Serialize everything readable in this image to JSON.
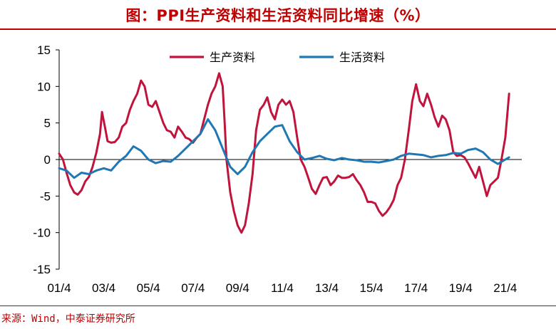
{
  "page": {
    "title": "图：PPI生产资料和生活资料同比增速（%）",
    "source": "来源：Wind，中泰证券研究所"
  },
  "colors": {
    "series1": "#c0143c",
    "series2": "#1f77b4",
    "accent": "#c00000"
  },
  "chart_data": {
    "type": "line",
    "title": "图：PPI生产资料和生活资料同比增速（%）",
    "xlabel": "",
    "ylabel": "",
    "ylim": [
      -15,
      15
    ],
    "yticks": [
      "15",
      "10",
      "5",
      "0",
      "-5",
      "-10",
      "-15"
    ],
    "ytick_values": [
      15,
      10,
      5,
      0,
      -5,
      -10,
      -15
    ],
    "xticks": [
      "01/4",
      "03/4",
      "05/4",
      "07/4",
      "09/4",
      "11/4",
      "13/4",
      "15/4",
      "17/4",
      "19/4",
      "21/4"
    ],
    "xtick_values": [
      2001.25,
      2003.25,
      2005.25,
      2007.25,
      2009.25,
      2011.25,
      2013.25,
      2015.25,
      2017.25,
      2019.25,
      2021.25
    ],
    "xlim": [
      2001.25,
      2021.67
    ],
    "legend_position": "top-center",
    "grid": false,
    "series": [
      {
        "name": "生产资料",
        "color": "#c0143c",
        "points": [
          [
            2001.25,
            0.8
          ],
          [
            2001.42,
            0
          ],
          [
            2001.58,
            -1.8
          ],
          [
            2001.75,
            -3.5
          ],
          [
            2001.92,
            -4.5
          ],
          [
            2002.08,
            -4.8
          ],
          [
            2002.25,
            -4.2
          ],
          [
            2002.42,
            -3
          ],
          [
            2002.58,
            -2.4
          ],
          [
            2002.75,
            -1
          ],
          [
            2002.92,
            1
          ],
          [
            2003.08,
            3.5
          ],
          [
            2003.17,
            6.5
          ],
          [
            2003.33,
            4
          ],
          [
            2003.42,
            2.5
          ],
          [
            2003.58,
            2.3
          ],
          [
            2003.75,
            2.4
          ],
          [
            2003.92,
            3
          ],
          [
            2004.08,
            4.5
          ],
          [
            2004.25,
            5
          ],
          [
            2004.42,
            6.8
          ],
          [
            2004.58,
            8
          ],
          [
            2004.75,
            9
          ],
          [
            2004.92,
            10.8
          ],
          [
            2005.08,
            10
          ],
          [
            2005.25,
            7.5
          ],
          [
            2005.42,
            7.2
          ],
          [
            2005.58,
            8
          ],
          [
            2005.75,
            6.5
          ],
          [
            2005.92,
            5
          ],
          [
            2006.08,
            4
          ],
          [
            2006.25,
            3.8
          ],
          [
            2006.42,
            3
          ],
          [
            2006.58,
            4.5
          ],
          [
            2006.75,
            3.8
          ],
          [
            2006.92,
            3
          ],
          [
            2007.08,
            2.8
          ],
          [
            2007.25,
            2.3
          ],
          [
            2007.42,
            3
          ],
          [
            2007.58,
            3.5
          ],
          [
            2007.75,
            5.5
          ],
          [
            2007.92,
            7.5
          ],
          [
            2008.08,
            9
          ],
          [
            2008.25,
            10
          ],
          [
            2008.42,
            11.8
          ],
          [
            2008.58,
            10
          ],
          [
            2008.67,
            5
          ],
          [
            2008.75,
            0
          ],
          [
            2008.92,
            -4.5
          ],
          [
            2009.08,
            -7
          ],
          [
            2009.25,
            -9
          ],
          [
            2009.42,
            -10
          ],
          [
            2009.58,
            -9
          ],
          [
            2009.75,
            -6
          ],
          [
            2009.92,
            -2
          ],
          [
            2010.08,
            4
          ],
          [
            2010.25,
            6.8
          ],
          [
            2010.42,
            7.5
          ],
          [
            2010.58,
            8.5
          ],
          [
            2010.75,
            6.5
          ],
          [
            2010.92,
            5.5
          ],
          [
            2011.08,
            7.5
          ],
          [
            2011.25,
            8.2
          ],
          [
            2011.42,
            7.5
          ],
          [
            2011.58,
            8
          ],
          [
            2011.75,
            6.5
          ],
          [
            2011.92,
            3
          ],
          [
            2012.08,
            0
          ],
          [
            2012.25,
            -1
          ],
          [
            2012.42,
            -2.5
          ],
          [
            2012.58,
            -4
          ],
          [
            2012.75,
            -4.7
          ],
          [
            2012.92,
            -3.5
          ],
          [
            2013.08,
            -2.5
          ],
          [
            2013.25,
            -2.4
          ],
          [
            2013.42,
            -3.5
          ],
          [
            2013.58,
            -3
          ],
          [
            2013.75,
            -2.2
          ],
          [
            2013.92,
            -2.5
          ],
          [
            2014.08,
            -2.5
          ],
          [
            2014.25,
            -2.4
          ],
          [
            2014.42,
            -2
          ],
          [
            2014.58,
            -2.8
          ],
          [
            2014.75,
            -3.5
          ],
          [
            2014.92,
            -4.5
          ],
          [
            2015.08,
            -5.8
          ],
          [
            2015.25,
            -5.8
          ],
          [
            2015.42,
            -6
          ],
          [
            2015.58,
            -7
          ],
          [
            2015.75,
            -7.7
          ],
          [
            2015.92,
            -7.2
          ],
          [
            2016.08,
            -6.5
          ],
          [
            2016.25,
            -5.5
          ],
          [
            2016.42,
            -3.5
          ],
          [
            2016.58,
            -2.5
          ],
          [
            2016.75,
            0
          ],
          [
            2016.92,
            4
          ],
          [
            2017.08,
            8
          ],
          [
            2017.25,
            10.3
          ],
          [
            2017.42,
            8
          ],
          [
            2017.58,
            7.3
          ],
          [
            2017.75,
            9
          ],
          [
            2017.92,
            7.5
          ],
          [
            2018.08,
            5.8
          ],
          [
            2018.25,
            4.5
          ],
          [
            2018.42,
            6
          ],
          [
            2018.58,
            5.5
          ],
          [
            2018.75,
            4
          ],
          [
            2018.92,
            1
          ],
          [
            2019.08,
            0.5
          ],
          [
            2019.25,
            0.6
          ],
          [
            2019.42,
            0.3
          ],
          [
            2019.58,
            -0.5
          ],
          [
            2019.75,
            -1.5
          ],
          [
            2019.92,
            -2.5
          ],
          [
            2020.08,
            -1
          ],
          [
            2020.25,
            -3
          ],
          [
            2020.42,
            -5
          ],
          [
            2020.58,
            -3.5
          ],
          [
            2020.75,
            -3
          ],
          [
            2020.92,
            -2.5
          ],
          [
            2021.08,
            0
          ],
          [
            2021.25,
            3
          ],
          [
            2021.42,
            9
          ]
        ]
      },
      {
        "name": "生活资料",
        "color": "#1f77b4",
        "points": [
          [
            2001.25,
            -1.2
          ],
          [
            2001.58,
            -1.5
          ],
          [
            2001.92,
            -2.5
          ],
          [
            2002.25,
            -1.8
          ],
          [
            2002.58,
            -2
          ],
          [
            2002.92,
            -1.5
          ],
          [
            2003.25,
            -1.2
          ],
          [
            2003.58,
            -1.5
          ],
          [
            2003.92,
            -0.3
          ],
          [
            2004.25,
            0.5
          ],
          [
            2004.58,
            1.8
          ],
          [
            2004.92,
            1.2
          ],
          [
            2005.25,
            0
          ],
          [
            2005.58,
            -0.5
          ],
          [
            2005.92,
            -0.2
          ],
          [
            2006.25,
            -0.3
          ],
          [
            2006.58,
            0.5
          ],
          [
            2006.92,
            1.5
          ],
          [
            2007.25,
            2.5
          ],
          [
            2007.58,
            3.5
          ],
          [
            2007.92,
            5.5
          ],
          [
            2008.25,
            4
          ],
          [
            2008.58,
            1.5
          ],
          [
            2008.92,
            -1
          ],
          [
            2009.25,
            -2
          ],
          [
            2009.58,
            -1
          ],
          [
            2009.92,
            1
          ],
          [
            2010.25,
            2.5
          ],
          [
            2010.58,
            3.5
          ],
          [
            2010.92,
            4.5
          ],
          [
            2011.25,
            4.7
          ],
          [
            2011.58,
            2.5
          ],
          [
            2011.92,
            1
          ],
          [
            2012.25,
            0
          ],
          [
            2012.58,
            0.2
          ],
          [
            2012.92,
            0.5
          ],
          [
            2013.25,
            0.1
          ],
          [
            2013.58,
            -0.1
          ],
          [
            2013.92,
            0.2
          ],
          [
            2014.25,
            0
          ],
          [
            2014.58,
            -0.1
          ],
          [
            2014.92,
            -0.3
          ],
          [
            2015.25,
            -0.3
          ],
          [
            2015.58,
            -0.4
          ],
          [
            2015.92,
            -0.2
          ],
          [
            2016.25,
            0
          ],
          [
            2016.58,
            0.5
          ],
          [
            2016.92,
            0.8
          ],
          [
            2017.25,
            0.7
          ],
          [
            2017.58,
            0.6
          ],
          [
            2017.92,
            0.3
          ],
          [
            2018.25,
            0.5
          ],
          [
            2018.58,
            0.6
          ],
          [
            2018.92,
            0.9
          ],
          [
            2019.25,
            0.8
          ],
          [
            2019.58,
            1.3
          ],
          [
            2019.92,
            1.5
          ],
          [
            2020.25,
            1
          ],
          [
            2020.58,
            0
          ],
          [
            2020.92,
            -0.6
          ],
          [
            2021.25,
            0
          ],
          [
            2021.42,
            0.3
          ]
        ]
      }
    ]
  }
}
